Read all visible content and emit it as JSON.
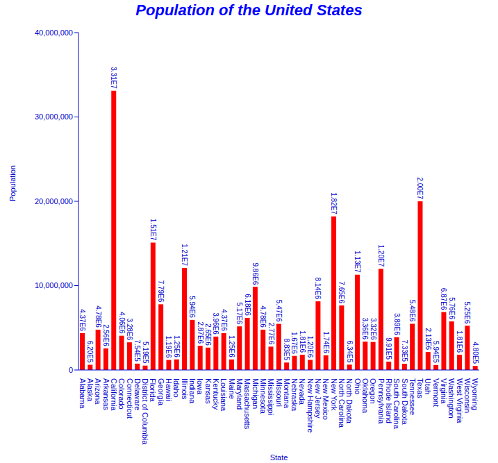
{
  "chart_data": {
    "type": "bar",
    "title": "Population of the United States",
    "x_label": "State",
    "y_label": "Population",
    "categories": [
      "Alabama",
      "Alaska",
      "Arizona",
      "Arkansas",
      "California",
      "Colorado",
      "Connecticut",
      "Delaware",
      "District of Columbia",
      "Florida",
      "Georgia",
      "Hawaii",
      "Idaho",
      "Illinois",
      "Indiana",
      "Iowa",
      "Kansas",
      "Kentucky",
      "Louisiana",
      "Maine",
      "Maryland",
      "Massachusetts",
      "Michigan",
      "Minnesota",
      "Mississippi",
      "Missouri",
      "Montana",
      "Nebraska",
      "Nevada",
      "New Hampshire",
      "New Jersey",
      "New Mexico",
      "New York",
      "North Carolina",
      "North Dakota",
      "Ohio",
      "Oklahoma",
      "Oregon",
      "Pennsylvania",
      "Rhode Island",
      "South Carolina",
      "South Dakota",
      "Tennessee",
      "Texas",
      "Utah",
      "Vermont",
      "Virginia",
      "Washington",
      "West Virginia",
      "Wisconsin",
      "Wyoming"
    ],
    "values": [
      4370000,
      620000,
      4780000,
      2560000,
      33100000,
      4060000,
      3280000,
      754000,
      519000,
      15100000,
      7790000,
      1190000,
      1250000,
      12100000,
      5940000,
      2870000,
      2650000,
      3960000,
      4370000,
      1250000,
      5170000,
      6180000,
      9860000,
      4780000,
      2770000,
      5470000,
      883000,
      1670000,
      1810000,
      1200000,
      8140000,
      1740000,
      18200000,
      7650000,
      634000,
      11300000,
      3360000,
      3320000,
      12000000,
      991000,
      3890000,
      733000,
      5480000,
      20000000,
      2130000,
      594000,
      6870000,
      5760000,
      1810000,
      5250000,
      480000
    ],
    "value_labels": [
      "4.37E6",
      "6.20E5",
      "4.78E6",
      "2.56E6",
      "3.31E7",
      "4.06E6",
      "3.28E6",
      "7.54E5",
      "5.19E5",
      "1.51E7",
      "7.79E6",
      "1.19E6",
      "1.25E6",
      "1.21E7",
      "5.94E6",
      "2.87E6",
      "2.65E6",
      "3.96E6",
      "4.37E6",
      "1.25E6",
      "5.17E6",
      "6.18E6",
      "9.86E6",
      "4.78E6",
      "2.77E6",
      "5.47E6",
      "8.83E5",
      "1.67E6",
      "1.81E6",
      "1.20E6",
      "8.14E6",
      "1.74E6",
      "1.82E7",
      "7.65E6",
      "6.34E5",
      "1.13E7",
      "3.36E6",
      "3.32E6",
      "1.20E7",
      "9.91E5",
      "3.89E6",
      "7.33E5",
      "5.48E6",
      "2.00E7",
      "2.13E6",
      "5.94E5",
      "6.87E6",
      "5.76E6",
      "1.81E6",
      "5.25E6",
      "4.80E5"
    ],
    "color": "#ff0000",
    "ylim": [
      0,
      40000000
    ],
    "yticks": [
      0,
      {
        "value": 10000000,
        "label": "10,000,000"
      },
      {
        "value": 20000000,
        "label": "20,000,000"
      },
      {
        "value": 30000000,
        "label": "30,000,000"
      },
      {
        "value": 40000000,
        "label": "40,000,000"
      }
    ],
    "grid": false,
    "data_labels": true
  }
}
